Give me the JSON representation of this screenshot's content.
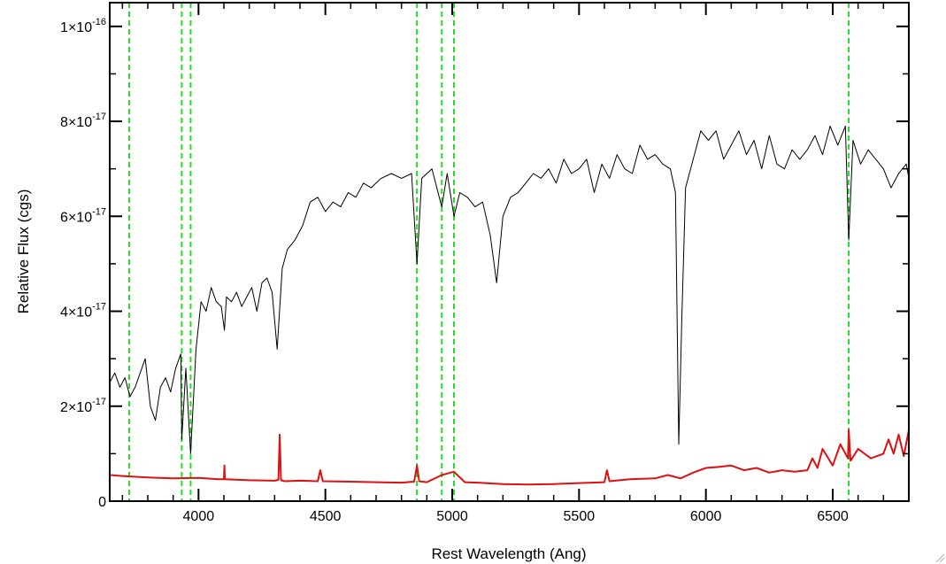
{
  "chart_data": {
    "type": "line",
    "title": "",
    "xlabel": "Rest Wavelength (Ang)",
    "ylabel": "Relative Flux (cgs)",
    "xlim": [
      3650,
      6800
    ],
    "ylim": [
      0,
      1.05e-16
    ],
    "x_ticks": [
      {
        "value": 4000,
        "label": "4000"
      },
      {
        "value": 4500,
        "label": "4500"
      },
      {
        "value": 5000,
        "label": "5000"
      },
      {
        "value": 5500,
        "label": "5500"
      },
      {
        "value": 6000,
        "label": "6000"
      },
      {
        "value": 6500,
        "label": "6500"
      }
    ],
    "y_ticks": [
      {
        "value": 0,
        "mantissa": "0",
        "exponent": ""
      },
      {
        "value": 2e-17,
        "mantissa": "2×10",
        "exponent": "-17"
      },
      {
        "value": 4e-17,
        "mantissa": "4×10",
        "exponent": "-17"
      },
      {
        "value": 6e-17,
        "mantissa": "6×10",
        "exponent": "-17"
      },
      {
        "value": 8e-17,
        "mantissa": "8×10",
        "exponent": "-17"
      },
      {
        "value": 1e-16,
        "mantissa": "1×10",
        "exponent": "-16"
      }
    ],
    "reference_lines": [
      3727,
      3934,
      3969,
      4861,
      4959,
      5007,
      6563
    ],
    "series": [
      {
        "color": "#000000",
        "x": [
          3650,
          3670,
          3690,
          3710,
          3730,
          3750,
          3770,
          3790,
          3810,
          3830,
          3850,
          3870,
          3890,
          3910,
          3930,
          3934,
          3950,
          3969,
          3990,
          4010,
          4030,
          4050,
          4070,
          4090,
          4102,
          4110,
          4130,
          4150,
          4170,
          4190,
          4210,
          4230,
          4250,
          4270,
          4290,
          4310,
          4330,
          4350,
          4380,
          4410,
          4440,
          4470,
          4500,
          4530,
          4560,
          4590,
          4620,
          4650,
          4680,
          4720,
          4760,
          4800,
          4840,
          4861,
          4880,
          4920,
          4959,
          4980,
          5007,
          5030,
          5060,
          5090,
          5120,
          5150,
          5175,
          5200,
          5230,
          5260,
          5290,
          5320,
          5350,
          5380,
          5410,
          5440,
          5470,
          5500,
          5530,
          5560,
          5590,
          5620,
          5650,
          5680,
          5710,
          5740,
          5770,
          5800,
          5830,
          5860,
          5880,
          5893,
          5905,
          5920,
          5950,
          5980,
          6010,
          6040,
          6070,
          6100,
          6130,
          6160,
          6190,
          6220,
          6250,
          6280,
          6310,
          6340,
          6370,
          6400,
          6430,
          6460,
          6490,
          6520,
          6550,
          6563,
          6580,
          6610,
          6640,
          6670,
          6700,
          6730,
          6760,
          6790,
          6800
        ],
        "y": [
          2.5e-17,
          2.7e-17,
          2.4e-17,
          2.6e-17,
          2.2e-17,
          2.4e-17,
          2.7e-17,
          3e-17,
          2e-17,
          1.7e-17,
          2.4e-17,
          2.6e-17,
          2.3e-17,
          2.8e-17,
          3.1e-17,
          1.3e-17,
          2.8e-17,
          1e-17,
          3.2e-17,
          4.2e-17,
          4e-17,
          4.5e-17,
          4.2e-17,
          4.1e-17,
          3.6e-17,
          4.3e-17,
          4.2e-17,
          4.4e-17,
          4.1e-17,
          4.3e-17,
          4.5e-17,
          4e-17,
          4.6e-17,
          4.7e-17,
          4.4e-17,
          3.2e-17,
          4.9e-17,
          5.3e-17,
          5.5e-17,
          5.8e-17,
          6.3e-17,
          6.4e-17,
          6.1e-17,
          6.3e-17,
          6.2e-17,
          6.5e-17,
          6.4e-17,
          6.7e-17,
          6.6e-17,
          6.8e-17,
          6.9e-17,
          6.8e-17,
          6.9e-17,
          5e-17,
          6.8e-17,
          7e-17,
          6.2e-17,
          6.9e-17,
          6e-17,
          6.5e-17,
          6.4e-17,
          6.2e-17,
          6.3e-17,
          5.6e-17,
          4.6e-17,
          6e-17,
          6.4e-17,
          6.5e-17,
          6.7e-17,
          6.9e-17,
          6.8e-17,
          7e-17,
          6.7e-17,
          7.2e-17,
          6.9e-17,
          7e-17,
          7.2e-17,
          6.5e-17,
          7.1e-17,
          6.8e-17,
          7.3e-17,
          7e-17,
          6.9e-17,
          7.5e-17,
          7.2e-17,
          7.3e-17,
          7.1e-17,
          7e-17,
          6.5e-17,
          1.2e-17,
          3.8e-17,
          6.6e-17,
          7.2e-17,
          7.8e-17,
          7.6e-17,
          7.8e-17,
          7.2e-17,
          7.5e-17,
          7.8e-17,
          7.3e-17,
          7.6e-17,
          7e-17,
          7.7e-17,
          7.1e-17,
          7e-17,
          7.4e-17,
          7.2e-17,
          7.4e-17,
          7.7e-17,
          7.3e-17,
          7.9e-17,
          7.5e-17,
          7.9e-17,
          5.5e-17,
          7.6e-17,
          7.1e-17,
          7.4e-17,
          7.2e-17,
          7e-17,
          6.6e-17,
          6.9e-17,
          7.1e-17,
          6.8e-17
        ]
      },
      {
        "color": "#dd1111",
        "x": [
          3650,
          3700,
          3800,
          3900,
          4000,
          4080,
          4100,
          4102,
          4104,
          4200,
          4300,
          4315,
          4320,
          4325,
          4340,
          4400,
          4470,
          4480,
          4490,
          4600,
          4700,
          4800,
          4850,
          4861,
          4870,
          4900,
          4959,
          5007,
          5050,
          5100,
          5200,
          5300,
          5400,
          5500,
          5600,
          5610,
          5620,
          5700,
          5800,
          5850,
          5900,
          5950,
          6000,
          6050,
          6100,
          6150,
          6200,
          6250,
          6300,
          6350,
          6400,
          6420,
          6440,
          6460,
          6500,
          6530,
          6560,
          6563,
          6570,
          6600,
          6650,
          6700,
          6720,
          6740,
          6760,
          6780,
          6800
        ],
        "y": [
          5.5e-18,
          5.3e-18,
          5e-18,
          4.8e-18,
          4.9e-18,
          4.6e-18,
          4.6e-18,
          7.5e-18,
          4.6e-18,
          4.4e-18,
          4.3e-18,
          4.5e-18,
          1.4e-17,
          4.4e-18,
          4.2e-18,
          4.3e-18,
          4.2e-18,
          6.5e-18,
          4.2e-18,
          4.1e-18,
          4e-18,
          3.9e-18,
          4.1e-18,
          7.5e-18,
          4.2e-18,
          4e-18,
          5.5e-18,
          6.2e-18,
          4e-18,
          3.9e-18,
          3.6e-18,
          3.5e-18,
          3.6e-18,
          3.8e-18,
          4e-18,
          6.5e-18,
          4.2e-18,
          4.6e-18,
          4.8e-18,
          5.5e-18,
          4.8e-18,
          6e-18,
          7e-18,
          7.2e-18,
          7.5e-18,
          6.5e-18,
          7e-18,
          6e-18,
          6.5e-18,
          6.2e-18,
          6.5e-18,
          9e-18,
          7e-18,
          1.1e-17,
          7.5e-18,
          1.2e-17,
          9e-18,
          1.5e-17,
          8.5e-18,
          1.1e-17,
          9e-18,
          1e-17,
          1.3e-17,
          1e-17,
          1.4e-17,
          9.5e-18,
          1.5e-17
        ]
      }
    ]
  }
}
